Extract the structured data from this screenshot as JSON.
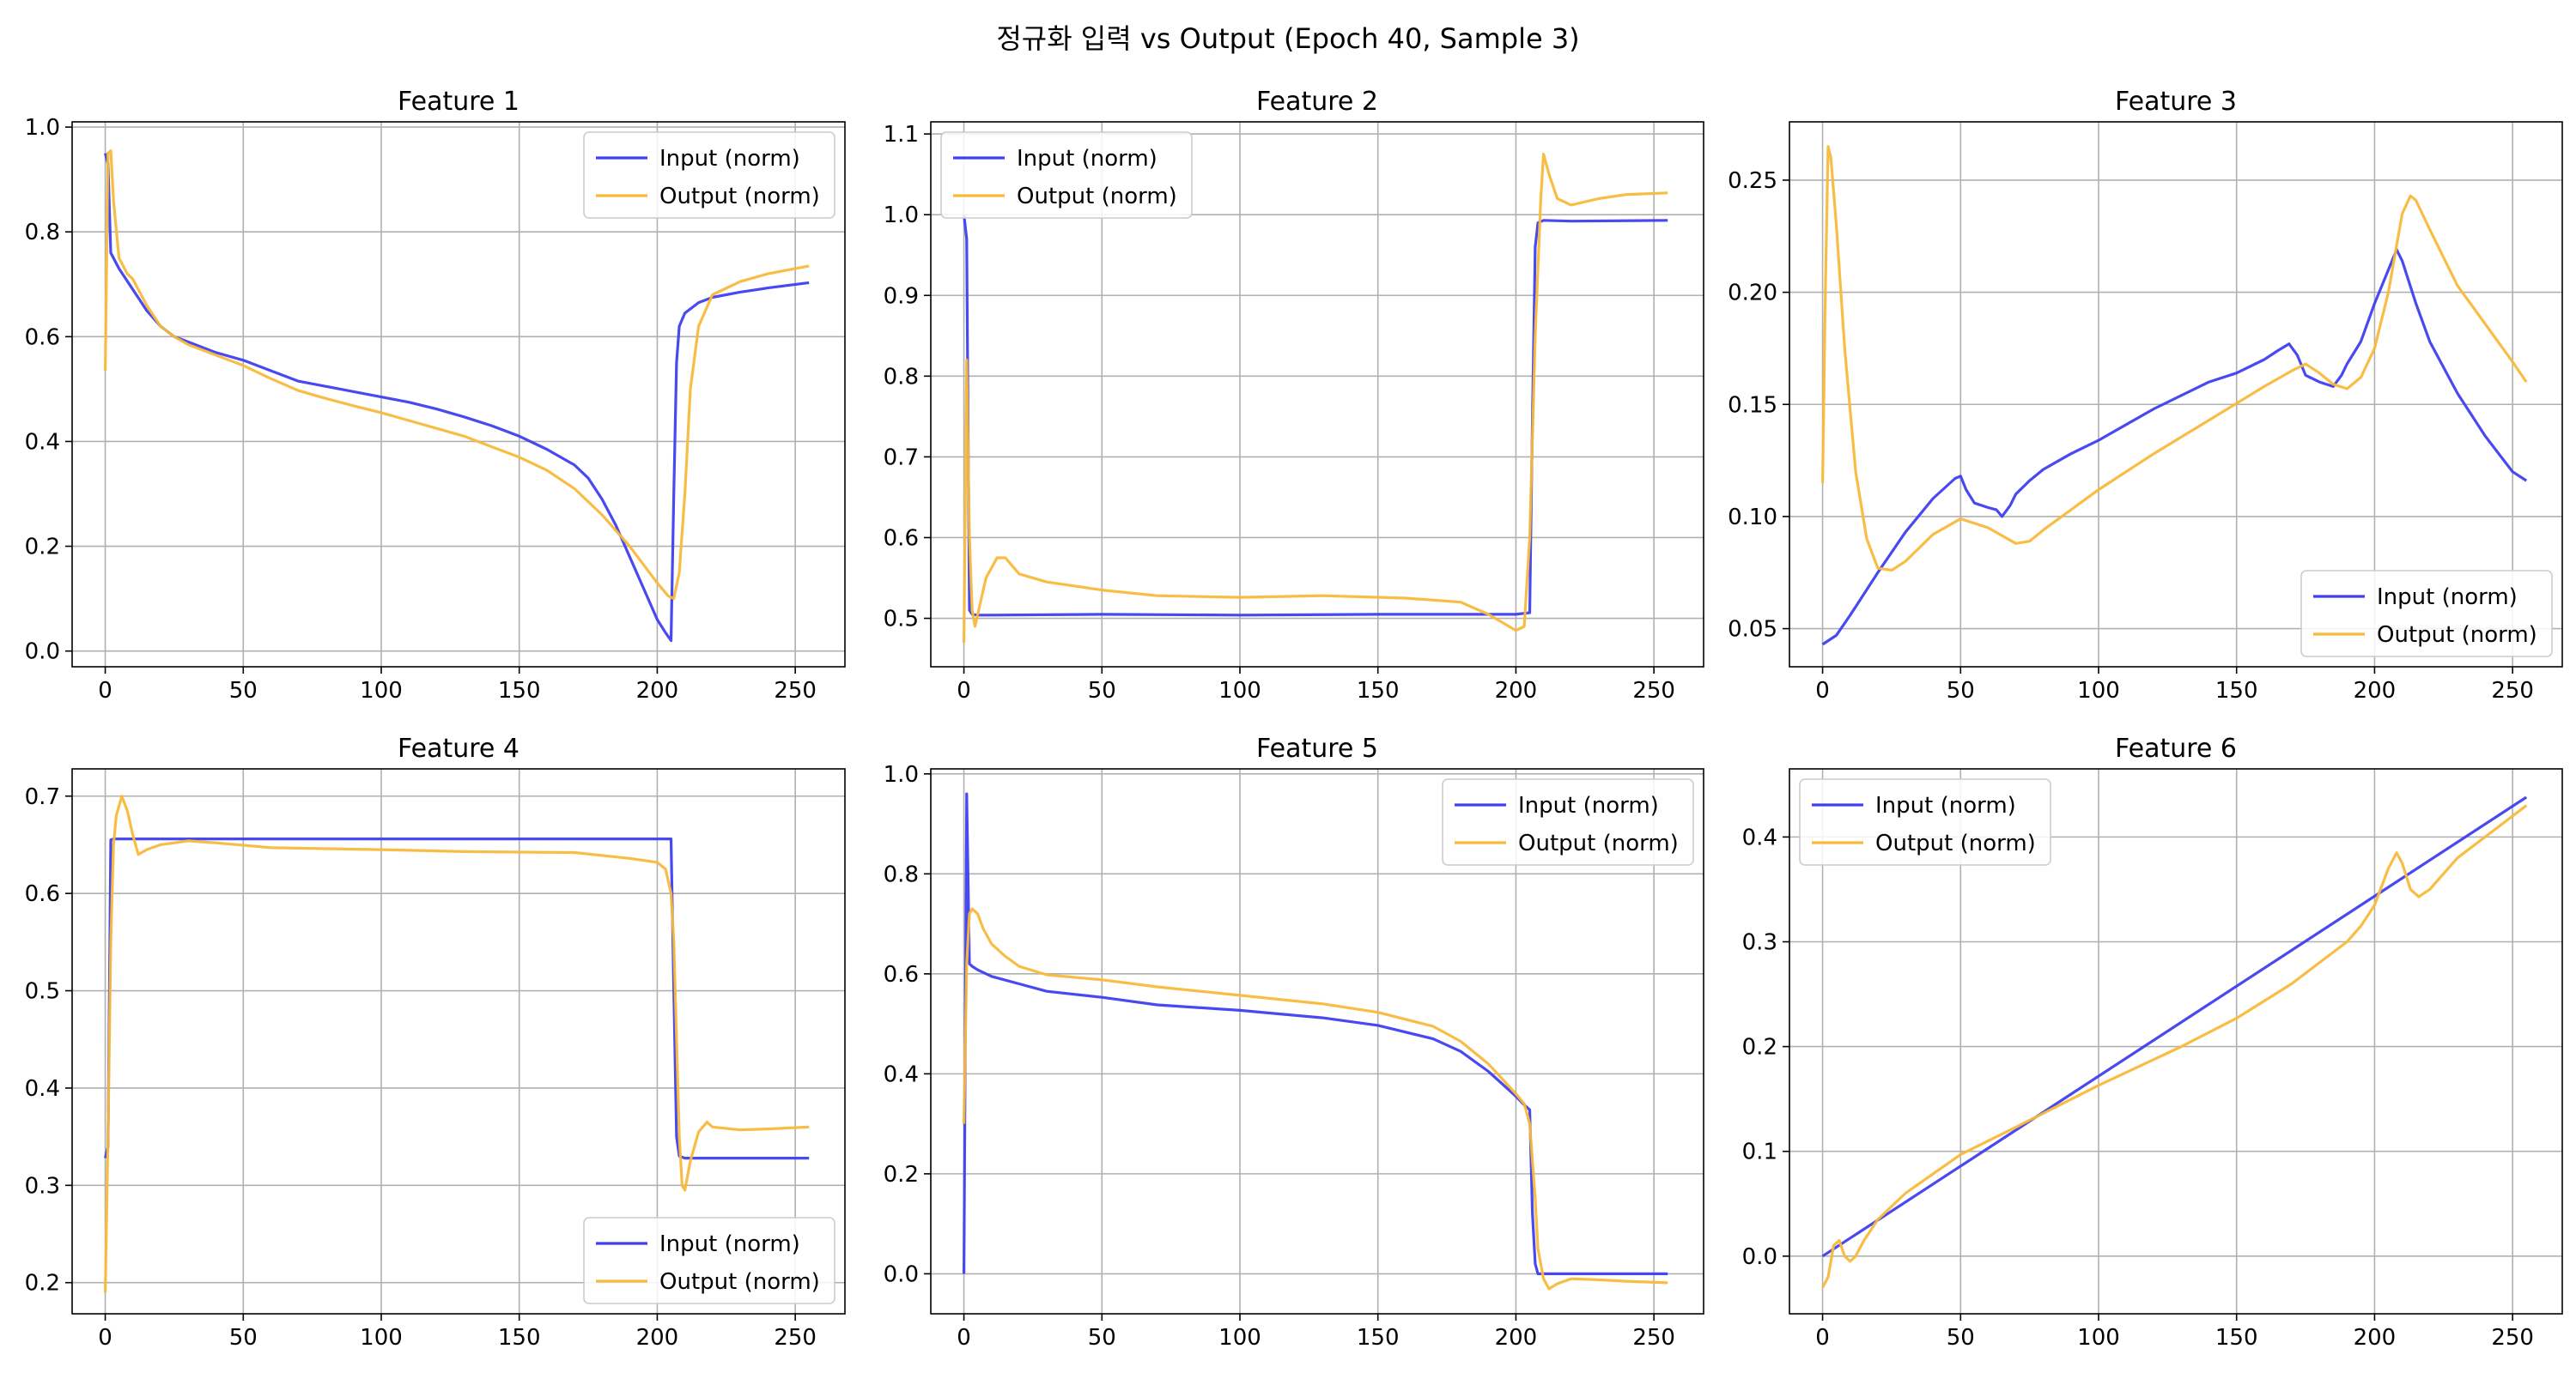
{
  "figure": {
    "suptitle": "정규화 입력 vs Output (Epoch 40, Sample 3)",
    "legend_input": "Input (norm)",
    "legend_output": "Output (norm)"
  },
  "colors": {
    "input": "#3f3ff0",
    "output": "#f8b93b",
    "grid": "#b0b0b0",
    "axis": "#000000"
  },
  "chart_data": [
    {
      "type": "line",
      "title": "Feature 1",
      "xlim": [
        -12,
        268
      ],
      "ylim": [
        -0.03,
        1.01
      ],
      "xticks": [
        0,
        50,
        100,
        150,
        200,
        250
      ],
      "yticks": [
        0.0,
        0.2,
        0.4,
        0.6,
        0.8,
        1.0
      ],
      "ytick_labels": [
        "0.0",
        "0.2",
        "0.4",
        "0.6",
        "0.8",
        "1.0"
      ],
      "legend": "top-right",
      "grid": true,
      "series": [
        {
          "name": "Input (norm)",
          "x": [
            0,
            1,
            2,
            5,
            10,
            15,
            20,
            25,
            30,
            40,
            50,
            60,
            70,
            80,
            90,
            100,
            110,
            120,
            130,
            140,
            150,
            160,
            170,
            175,
            180,
            185,
            190,
            195,
            200,
            203,
            205,
            206,
            207,
            208,
            210,
            215,
            220,
            230,
            240,
            255
          ],
          "y": [
            0.95,
            0.93,
            0.76,
            0.73,
            0.69,
            0.65,
            0.62,
            0.6,
            0.59,
            0.57,
            0.555,
            0.535,
            0.515,
            0.505,
            0.495,
            0.485,
            0.475,
            0.462,
            0.447,
            0.43,
            0.41,
            0.385,
            0.355,
            0.33,
            0.29,
            0.24,
            0.18,
            0.12,
            0.06,
            0.035,
            0.02,
            0.3,
            0.55,
            0.62,
            0.645,
            0.665,
            0.675,
            0.685,
            0.693,
            0.703
          ]
        },
        {
          "name": "Output (norm)",
          "x": [
            0,
            1,
            2,
            3,
            5,
            8,
            10,
            15,
            20,
            25,
            30,
            40,
            50,
            60,
            70,
            80,
            90,
            100,
            110,
            120,
            130,
            140,
            150,
            160,
            170,
            180,
            190,
            200,
            204,
            206,
            208,
            210,
            212,
            215,
            220,
            230,
            240,
            255
          ],
          "y": [
            0.535,
            0.95,
            0.955,
            0.86,
            0.75,
            0.72,
            0.71,
            0.66,
            0.62,
            0.6,
            0.585,
            0.565,
            0.545,
            0.52,
            0.497,
            0.482,
            0.468,
            0.455,
            0.44,
            0.425,
            0.41,
            0.39,
            0.37,
            0.345,
            0.31,
            0.26,
            0.2,
            0.13,
            0.105,
            0.1,
            0.15,
            0.3,
            0.5,
            0.62,
            0.68,
            0.705,
            0.72,
            0.735
          ]
        }
      ]
    },
    {
      "type": "line",
      "title": "Feature 2",
      "xlim": [
        -12,
        268
      ],
      "ylim": [
        0.44,
        1.115
      ],
      "xticks": [
        0,
        50,
        100,
        150,
        200,
        250
      ],
      "yticks": [
        0.5,
        0.6,
        0.7,
        0.8,
        0.9,
        1.0,
        1.1
      ],
      "ytick_labels": [
        "0.5",
        "0.6",
        "0.7",
        "0.8",
        "0.9",
        "1.0",
        "1.1"
      ],
      "legend": "top-left",
      "grid": true,
      "series": [
        {
          "name": "Input (norm)",
          "x": [
            0,
            1,
            2,
            3,
            5,
            10,
            50,
            100,
            150,
            200,
            205,
            206,
            207,
            208,
            210,
            220,
            255
          ],
          "y": [
            1.0,
            0.97,
            0.51,
            0.505,
            0.504,
            0.504,
            0.505,
            0.504,
            0.505,
            0.505,
            0.507,
            0.75,
            0.96,
            0.99,
            0.993,
            0.992,
            0.993
          ]
        },
        {
          "name": "Output (norm)",
          "x": [
            0,
            1,
            2,
            3,
            4,
            6,
            8,
            12,
            15,
            20,
            30,
            50,
            70,
            100,
            130,
            160,
            180,
            190,
            195,
            200,
            203,
            205,
            207,
            209,
            210,
            212,
            215,
            220,
            230,
            240,
            255
          ],
          "y": [
            0.47,
            0.82,
            0.6,
            0.51,
            0.49,
            0.52,
            0.55,
            0.575,
            0.575,
            0.555,
            0.545,
            0.535,
            0.528,
            0.526,
            0.528,
            0.525,
            0.52,
            0.505,
            0.495,
            0.485,
            0.49,
            0.6,
            0.85,
            1.02,
            1.075,
            1.05,
            1.02,
            1.012,
            1.02,
            1.025,
            1.027
          ]
        }
      ]
    },
    {
      "type": "line",
      "title": "Feature 3",
      "xlim": [
        -12,
        268
      ],
      "ylim": [
        0.033,
        0.276
      ],
      "xticks": [
        0,
        50,
        100,
        150,
        200,
        250
      ],
      "yticks": [
        0.05,
        0.1,
        0.15,
        0.2,
        0.25
      ],
      "ytick_labels": [
        "0.05",
        "0.10",
        "0.15",
        "0.20",
        "0.25"
      ],
      "legend": "bottom-right",
      "grid": true,
      "series": [
        {
          "name": "Input (norm)",
          "x": [
            0,
            5,
            10,
            20,
            30,
            40,
            48,
            50,
            52,
            55,
            60,
            63,
            65,
            68,
            70,
            75,
            80,
            90,
            100,
            110,
            120,
            130,
            140,
            150,
            160,
            165,
            169,
            172,
            175,
            180,
            185,
            188,
            190,
            195,
            200,
            205,
            208,
            210,
            215,
            220,
            230,
            240,
            250,
            255
          ],
          "y": [
            0.043,
            0.047,
            0.056,
            0.075,
            0.093,
            0.108,
            0.117,
            0.118,
            0.112,
            0.106,
            0.104,
            0.103,
            0.1,
            0.105,
            0.11,
            0.116,
            0.121,
            0.128,
            0.134,
            0.141,
            0.148,
            0.154,
            0.16,
            0.164,
            0.17,
            0.174,
            0.177,
            0.172,
            0.163,
            0.16,
            0.158,
            0.163,
            0.168,
            0.178,
            0.195,
            0.21,
            0.219,
            0.214,
            0.195,
            0.178,
            0.155,
            0.136,
            0.12,
            0.116
          ]
        },
        {
          "name": "Output (norm)",
          "x": [
            0,
            1,
            2,
            3,
            5,
            8,
            12,
            16,
            20,
            25,
            30,
            40,
            50,
            60,
            70,
            75,
            80,
            90,
            100,
            120,
            140,
            160,
            170,
            175,
            180,
            185,
            190,
            195,
            200,
            205,
            210,
            213,
            215,
            220,
            230,
            240,
            250,
            255
          ],
          "y": [
            0.115,
            0.2,
            0.265,
            0.26,
            0.23,
            0.175,
            0.12,
            0.09,
            0.077,
            0.076,
            0.08,
            0.092,
            0.099,
            0.095,
            0.088,
            0.089,
            0.094,
            0.103,
            0.112,
            0.128,
            0.143,
            0.158,
            0.165,
            0.168,
            0.164,
            0.159,
            0.157,
            0.162,
            0.175,
            0.2,
            0.235,
            0.243,
            0.241,
            0.228,
            0.203,
            0.186,
            0.169,
            0.16
          ]
        }
      ]
    },
    {
      "type": "line",
      "title": "Feature 4",
      "xlim": [
        -12,
        268
      ],
      "ylim": [
        0.168,
        0.728
      ],
      "xticks": [
        0,
        50,
        100,
        150,
        200,
        250
      ],
      "yticks": [
        0.2,
        0.3,
        0.4,
        0.5,
        0.6,
        0.7
      ],
      "ytick_labels": [
        "0.2",
        "0.3",
        "0.4",
        "0.5",
        "0.6",
        "0.7"
      ],
      "legend": "bottom-right",
      "grid": true,
      "series": [
        {
          "name": "Input (norm)",
          "x": [
            0,
            1,
            2,
            3,
            5,
            50,
            100,
            150,
            200,
            205,
            206,
            207,
            208,
            210,
            255
          ],
          "y": [
            0.328,
            0.34,
            0.655,
            0.656,
            0.656,
            0.656,
            0.656,
            0.656,
            0.656,
            0.656,
            0.5,
            0.35,
            0.33,
            0.328,
            0.328
          ]
        },
        {
          "name": "Output (norm)",
          "x": [
            0,
            1,
            2,
            3,
            4,
            6,
            8,
            10,
            12,
            15,
            20,
            30,
            40,
            60,
            80,
            100,
            130,
            170,
            190,
            200,
            203,
            205,
            206,
            207,
            208,
            209,
            210,
            212,
            215,
            218,
            220,
            230,
            240,
            255
          ],
          "y": [
            0.19,
            0.35,
            0.55,
            0.65,
            0.68,
            0.7,
            0.685,
            0.66,
            0.64,
            0.645,
            0.65,
            0.654,
            0.652,
            0.647,
            0.646,
            0.645,
            0.643,
            0.642,
            0.636,
            0.632,
            0.625,
            0.6,
            0.55,
            0.45,
            0.35,
            0.3,
            0.295,
            0.325,
            0.355,
            0.365,
            0.36,
            0.357,
            0.358,
            0.36
          ]
        }
      ]
    },
    {
      "type": "line",
      "title": "Feature 5",
      "xlim": [
        -12,
        268
      ],
      "ylim": [
        -0.08,
        1.01
      ],
      "xticks": [
        0,
        50,
        100,
        150,
        200,
        250
      ],
      "yticks": [
        0.0,
        0.2,
        0.4,
        0.6,
        0.8,
        1.0
      ],
      "ytick_labels": [
        "0.0",
        "0.2",
        "0.4",
        "0.6",
        "0.8",
        "1.0"
      ],
      "legend": "top-right",
      "grid": true,
      "series": [
        {
          "name": "Input (norm)",
          "x": [
            0,
            1,
            2,
            3,
            5,
            10,
            20,
            30,
            50,
            70,
            100,
            130,
            150,
            170,
            180,
            190,
            195,
            200,
            203,
            205,
            206,
            207,
            208,
            210,
            255
          ],
          "y": [
            0.0,
            0.96,
            0.62,
            0.615,
            0.608,
            0.595,
            0.58,
            0.565,
            0.553,
            0.538,
            0.527,
            0.512,
            0.497,
            0.47,
            0.445,
            0.405,
            0.38,
            0.355,
            0.338,
            0.328,
            0.12,
            0.02,
            0.0,
            0.0,
            0.0
          ]
        },
        {
          "name": "Output (norm)",
          "x": [
            0,
            1,
            2,
            3,
            5,
            7,
            10,
            15,
            20,
            30,
            50,
            70,
            100,
            130,
            150,
            170,
            180,
            190,
            195,
            200,
            203,
            205,
            207,
            208,
            210,
            212,
            215,
            220,
            230,
            240,
            255
          ],
          "y": [
            0.3,
            0.62,
            0.72,
            0.73,
            0.72,
            0.69,
            0.66,
            0.635,
            0.615,
            0.598,
            0.588,
            0.574,
            0.557,
            0.54,
            0.523,
            0.495,
            0.465,
            0.42,
            0.39,
            0.36,
            0.34,
            0.3,
            0.15,
            0.05,
            -0.01,
            -0.03,
            -0.02,
            -0.01,
            -0.012,
            -0.015,
            -0.018
          ]
        }
      ]
    },
    {
      "type": "line",
      "title": "Feature 6",
      "xlim": [
        -12,
        268
      ],
      "ylim": [
        -0.055,
        0.465
      ],
      "xticks": [
        0,
        50,
        100,
        150,
        200,
        250
      ],
      "yticks": [
        0.0,
        0.1,
        0.2,
        0.3,
        0.4
      ],
      "ytick_labels": [
        "0.0",
        "0.1",
        "0.2",
        "0.3",
        "0.4"
      ],
      "legend": "top-left",
      "grid": true,
      "series": [
        {
          "name": "Input (norm)",
          "x": [
            0,
            255
          ],
          "y": [
            0.0,
            0.438
          ]
        },
        {
          "name": "Output (norm)",
          "x": [
            0,
            2,
            4,
            6,
            8,
            10,
            12,
            15,
            20,
            30,
            50,
            70,
            100,
            130,
            150,
            170,
            180,
            190,
            195,
            200,
            205,
            208,
            210,
            213,
            216,
            220,
            225,
            230,
            240,
            250,
            255
          ],
          "y": [
            -0.03,
            -0.02,
            0.01,
            0.015,
            0.0,
            -0.005,
            0.0,
            0.015,
            0.035,
            0.06,
            0.097,
            0.123,
            0.163,
            0.2,
            0.227,
            0.26,
            0.28,
            0.3,
            0.315,
            0.335,
            0.37,
            0.385,
            0.375,
            0.35,
            0.343,
            0.35,
            0.365,
            0.38,
            0.4,
            0.42,
            0.43
          ]
        }
      ]
    }
  ]
}
